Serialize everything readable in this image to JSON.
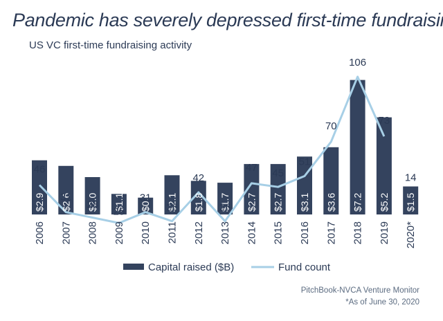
{
  "title": "Pandemic has severely depressed first-time fundraising",
  "subtitle": "US VC first-time fundraising activity",
  "source": "PitchBook-NVCA Venture Monitor",
  "footnote": "*As of June 30, 2020",
  "colors": {
    "bar": "#34435e",
    "line": "#a7cfe6",
    "text": "#2b3a55"
  },
  "chart_data": {
    "type": "bar",
    "categories": [
      "2006",
      "2007",
      "2008",
      "2009",
      "2010",
      "2011",
      "2012",
      "2013",
      "2014",
      "2015",
      "2016",
      "2017",
      "2018",
      "2019",
      "2020*"
    ],
    "series": [
      {
        "name": "Capital raised ($B)",
        "type": "bar",
        "values": [
          2.9,
          2.6,
          2.0,
          1.1,
          0.9,
          2.1,
          1.8,
          1.7,
          2.7,
          2.7,
          3.1,
          3.6,
          7.2,
          5.2,
          1.5
        ],
        "labels": [
          "$2.9",
          "$2.6",
          "$2.0",
          "$1.1",
          "$0.9",
          "$2.1",
          "$1.8",
          "$1.7",
          "$2.7",
          "$2.7",
          "$3.1",
          "$3.6",
          "$7.2",
          "$5.2",
          "$1.5"
        ]
      },
      {
        "name": "Fund count",
        "type": "line",
        "values": [
          46,
          31,
          28,
          25,
          31,
          26,
          42,
          26,
          47,
          45,
          51,
          70,
          106,
          73,
          14
        ],
        "labels": [
          "46",
          "31",
          "28",
          "25",
          "31",
          "26",
          "42",
          "26",
          "47",
          "45",
          "51",
          "70",
          "106",
          "73",
          "14"
        ]
      }
    ],
    "legend": "bottom"
  }
}
